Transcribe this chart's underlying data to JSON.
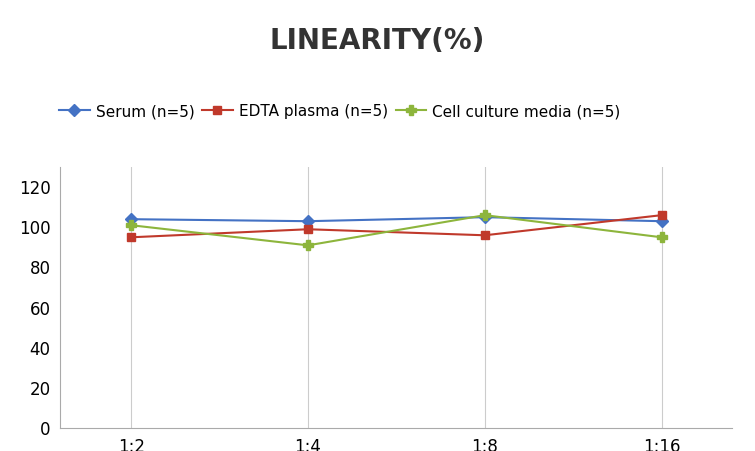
{
  "title": "LINEARITY(%)",
  "x_labels": [
    "1:2",
    "1:4",
    "1:8",
    "1:16"
  ],
  "x_positions": [
    0,
    1,
    2,
    3
  ],
  "series": [
    {
      "label": "Serum (n=5)",
      "values": [
        104,
        103,
        105,
        103
      ],
      "color": "#4472C4",
      "marker": "D",
      "linewidth": 1.5,
      "markersize": 6
    },
    {
      "label": "EDTA plasma (n=5)",
      "values": [
        95,
        99,
        96,
        106
      ],
      "color": "#C0392B",
      "marker": "s",
      "linewidth": 1.5,
      "markersize": 6
    },
    {
      "label": "Cell culture media (n=5)",
      "values": [
        101,
        91,
        106,
        95
      ],
      "color": "#8DB53C",
      "marker": "P",
      "linewidth": 1.5,
      "markersize": 7
    }
  ],
  "ylim": [
    0,
    130
  ],
  "yticks": [
    0,
    20,
    40,
    60,
    80,
    100,
    120
  ],
  "title_fontsize": 20,
  "legend_fontsize": 11,
  "tick_fontsize": 12,
  "background_color": "#ffffff",
  "spine_color": "#aaaaaa",
  "vertical_line_color": "#cccccc"
}
